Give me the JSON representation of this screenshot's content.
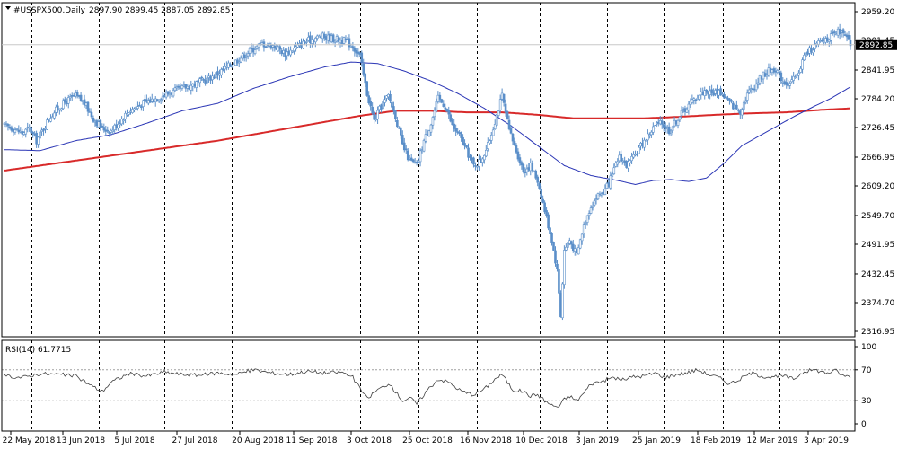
{
  "chart_data": [
    {
      "type": "candlestick",
      "header": {
        "icon": "down-triangle-icon",
        "symbol": "#USSPX500,Daily",
        "ohlc": "2897.90 2899.45 2887.05 2892.85"
      },
      "price_axis": {
        "ticks": [
          "2959.20",
          "2901.45",
          "2841.95",
          "2784.20",
          "2726.45",
          "2666.95",
          "2609.20",
          "2549.70",
          "2491.95",
          "2432.45",
          "2374.70",
          "2316.95"
        ],
        "range": [
          2316.95,
          2959.2
        ],
        "last_price": "2892.85"
      },
      "date_axis": {
        "labels": [
          "22 May 2018",
          "13 Jun 2018",
          "5 Jul 2018",
          "27 Jul 2018",
          "20 Aug 2018",
          "11 Sep 2018",
          "3 Oct 2018",
          "25 Oct 2018",
          "16 Nov 2018",
          "10 Dec 2018",
          "3 Jan 2019",
          "25 Jan 2019",
          "18 Feb 2019",
          "12 Mar 2019",
          "3 Apr 2019"
        ]
      },
      "price_path": [
        [
          0,
          2730
        ],
        [
          5,
          2725
        ],
        [
          10,
          2715
        ],
        [
          14,
          2725
        ],
        [
          18,
          2700
        ],
        [
          22,
          2725
        ],
        [
          26,
          2750
        ],
        [
          30,
          2765
        ],
        [
          35,
          2780
        ],
        [
          40,
          2790
        ],
        [
          45,
          2775
        ],
        [
          50,
          2745
        ],
        [
          55,
          2725
        ],
        [
          60,
          2720
        ],
        [
          65,
          2740
        ],
        [
          70,
          2760
        ],
        [
          78,
          2775
        ],
        [
          85,
          2785
        ],
        [
          92,
          2795
        ],
        [
          100,
          2805
        ],
        [
          108,
          2815
        ],
        [
          115,
          2825
        ],
        [
          122,
          2840
        ],
        [
          130,
          2860
        ],
        [
          138,
          2880
        ],
        [
          145,
          2895
        ],
        [
          152,
          2890
        ],
        [
          158,
          2875
        ],
        [
          163,
          2885
        ],
        [
          170,
          2900
        ],
        [
          178,
          2910
        ],
        [
          185,
          2905
        ],
        [
          192,
          2900
        ],
        [
          196,
          2890
        ],
        [
          200,
          2870
        ],
        [
          204,
          2795
        ],
        [
          208,
          2740
        ],
        [
          212,
          2770
        ],
        [
          216,
          2790
        ],
        [
          220,
          2750
        ],
        [
          224,
          2690
        ],
        [
          228,
          2660
        ],
        [
          232,
          2650
        ],
        [
          236,
          2700
        ],
        [
          240,
          2735
        ],
        [
          244,
          2785
        ],
        [
          248,
          2770
        ],
        [
          252,
          2730
        ],
        [
          256,
          2710
        ],
        [
          260,
          2680
        ],
        [
          264,
          2650
        ],
        [
          268,
          2660
        ],
        [
          272,
          2690
        ],
        [
          276,
          2740
        ],
        [
          280,
          2790
        ],
        [
          284,
          2720
        ],
        [
          288,
          2680
        ],
        [
          292,
          2640
        ],
        [
          296,
          2650
        ],
        [
          300,
          2620
        ],
        [
          304,
          2560
        ],
        [
          308,
          2500
        ],
        [
          311,
          2440
        ],
        [
          313,
          2350
        ],
        [
          315,
          2480
        ],
        [
          318,
          2500
        ],
        [
          322,
          2470
        ],
        [
          326,
          2530
        ],
        [
          330,
          2570
        ],
        [
          334,
          2590
        ],
        [
          338,
          2600
        ],
        [
          342,
          2630
        ],
        [
          346,
          2670
        ],
        [
          350,
          2650
        ],
        [
          354,
          2665
        ],
        [
          358,
          2690
        ],
        [
          362,
          2710
        ],
        [
          366,
          2730
        ],
        [
          370,
          2735
        ],
        [
          374,
          2720
        ],
        [
          378,
          2740
        ],
        [
          382,
          2760
        ],
        [
          386,
          2775
        ],
        [
          390,
          2790
        ],
        [
          394,
          2800
        ],
        [
          398,
          2795
        ],
        [
          402,
          2800
        ],
        [
          406,
          2785
        ],
        [
          410,
          2770
        ],
        [
          414,
          2760
        ],
        [
          418,
          2795
        ],
        [
          422,
          2810
        ],
        [
          426,
          2830
        ],
        [
          430,
          2840
        ],
        [
          434,
          2845
        ],
        [
          438,
          2820
        ],
        [
          442,
          2815
        ],
        [
          446,
          2830
        ],
        [
          450,
          2870
        ],
        [
          454,
          2885
        ],
        [
          458,
          2895
        ],
        [
          462,
          2905
        ],
        [
          466,
          2910
        ],
        [
          470,
          2920
        ],
        [
          474,
          2905
        ],
        [
          476,
          2893
        ]
      ],
      "ma_fast": [
        [
          0,
          2682
        ],
        [
          20,
          2680
        ],
        [
          40,
          2700
        ],
        [
          60,
          2712
        ],
        [
          80,
          2735
        ],
        [
          100,
          2760
        ],
        [
          120,
          2775
        ],
        [
          140,
          2805
        ],
        [
          160,
          2828
        ],
        [
          180,
          2848
        ],
        [
          195,
          2858
        ],
        [
          210,
          2855
        ],
        [
          225,
          2840
        ],
        [
          240,
          2820
        ],
        [
          255,
          2795
        ],
        [
          270,
          2765
        ],
        [
          285,
          2730
        ],
        [
          300,
          2690
        ],
        [
          315,
          2650
        ],
        [
          330,
          2630
        ],
        [
          345,
          2620
        ],
        [
          355,
          2612
        ],
        [
          365,
          2620
        ],
        [
          375,
          2622
        ],
        [
          385,
          2618
        ],
        [
          395,
          2625
        ],
        [
          405,
          2655
        ],
        [
          415,
          2690
        ],
        [
          425,
          2710
        ],
        [
          435,
          2730
        ],
        [
          445,
          2750
        ],
        [
          455,
          2768
        ],
        [
          465,
          2785
        ],
        [
          476,
          2808
        ]
      ],
      "ma_slow": [
        [
          0,
          2640
        ],
        [
          40,
          2660
        ],
        [
          80,
          2680
        ],
        [
          120,
          2700
        ],
        [
          160,
          2725
        ],
        [
          200,
          2750
        ],
        [
          220,
          2760
        ],
        [
          240,
          2760
        ],
        [
          260,
          2757
        ],
        [
          280,
          2757
        ],
        [
          300,
          2752
        ],
        [
          320,
          2745
        ],
        [
          340,
          2745
        ],
        [
          360,
          2745
        ],
        [
          380,
          2748
        ],
        [
          400,
          2752
        ],
        [
          420,
          2755
        ],
        [
          440,
          2757
        ],
        [
          460,
          2762
        ],
        [
          476,
          2765
        ]
      ],
      "rsi": {
        "label": "RSI(14) 61.7715",
        "ticks": [
          "100",
          "70",
          "30",
          "0"
        ],
        "levels": [
          70,
          30
        ],
        "path": [
          [
            0,
            62
          ],
          [
            10,
            60
          ],
          [
            20,
            65
          ],
          [
            30,
            64
          ],
          [
            40,
            62
          ],
          [
            50,
            48
          ],
          [
            55,
            42
          ],
          [
            60,
            54
          ],
          [
            70,
            65
          ],
          [
            80,
            62
          ],
          [
            90,
            67
          ],
          [
            100,
            64
          ],
          [
            110,
            63
          ],
          [
            120,
            66
          ],
          [
            130,
            64
          ],
          [
            140,
            70
          ],
          [
            150,
            66
          ],
          [
            160,
            64
          ],
          [
            170,
            68
          ],
          [
            180,
            66
          ],
          [
            190,
            67
          ],
          [
            196,
            60
          ],
          [
            200,
            46
          ],
          [
            204,
            33
          ],
          [
            210,
            44
          ],
          [
            216,
            52
          ],
          [
            220,
            42
          ],
          [
            224,
            30
          ],
          [
            228,
            34
          ],
          [
            232,
            26
          ],
          [
            238,
            44
          ],
          [
            244,
            58
          ],
          [
            250,
            54
          ],
          [
            256,
            44
          ],
          [
            260,
            40
          ],
          [
            264,
            38
          ],
          [
            270,
            45
          ],
          [
            276,
            58
          ],
          [
            280,
            64
          ],
          [
            286,
            44
          ],
          [
            292,
            42
          ],
          [
            296,
            36
          ],
          [
            300,
            38
          ],
          [
            304,
            30
          ],
          [
            308,
            24
          ],
          [
            312,
            22
          ],
          [
            315,
            32
          ],
          [
            318,
            36
          ],
          [
            322,
            30
          ],
          [
            326,
            40
          ],
          [
            330,
            52
          ],
          [
            336,
            55
          ],
          [
            342,
            60
          ],
          [
            348,
            57
          ],
          [
            354,
            61
          ],
          [
            360,
            62
          ],
          [
            366,
            66
          ],
          [
            372,
            60
          ],
          [
            378,
            64
          ],
          [
            384,
            66
          ],
          [
            390,
            70
          ],
          [
            396,
            64
          ],
          [
            402,
            60
          ],
          [
            408,
            52
          ],
          [
            414,
            58
          ],
          [
            420,
            66
          ],
          [
            426,
            62
          ],
          [
            432,
            60
          ],
          [
            438,
            62
          ],
          [
            444,
            58
          ],
          [
            450,
            68
          ],
          [
            456,
            70
          ],
          [
            462,
            66
          ],
          [
            468,
            69
          ],
          [
            472,
            62
          ],
          [
            476,
            62
          ]
        ]
      },
      "colors": {
        "candle": "#5b8fc9",
        "ma_fast": "#2a35b5",
        "ma_slow": "#d82a2a",
        "rsi": "#404040",
        "grid": "#000000",
        "axis": "#000000",
        "price_label_bg": "#000000"
      }
    }
  ]
}
